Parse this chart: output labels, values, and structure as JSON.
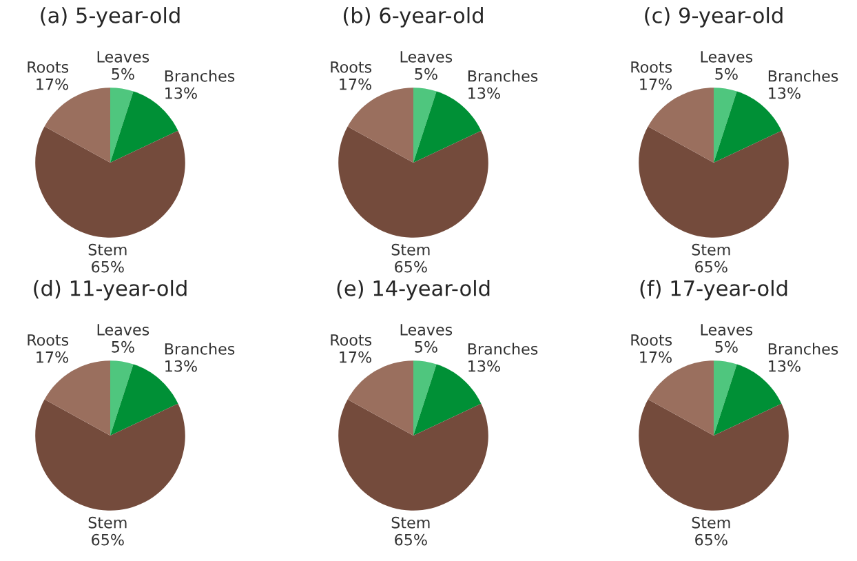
{
  "chart_data": [
    {
      "type": "pie",
      "title": "(a) 5-year-old",
      "categories": [
        "Leaves",
        "Branches",
        "Stem",
        "Roots"
      ],
      "values": [
        5,
        13,
        65,
        17
      ],
      "value_labels": [
        "5%",
        "13%",
        "65%",
        "17%"
      ],
      "colors": [
        "#4fc67e",
        "#009036",
        "#744b3c",
        "#9a6f5e"
      ]
    },
    {
      "type": "pie",
      "title": "(b) 6-year-old",
      "categories": [
        "Leaves",
        "Branches",
        "Stem",
        "Roots"
      ],
      "values": [
        5,
        13,
        65,
        17
      ],
      "value_labels": [
        "5%",
        "13%",
        "65%",
        "17%"
      ],
      "colors": [
        "#4fc67e",
        "#009036",
        "#744b3c",
        "#9a6f5e"
      ]
    },
    {
      "type": "pie",
      "title": "(c) 9-year-old",
      "categories": [
        "Leaves",
        "Branches",
        "Stem",
        "Roots"
      ],
      "values": [
        5,
        13,
        65,
        17
      ],
      "value_labels": [
        "5%",
        "13%",
        "65%",
        "17%"
      ],
      "colors": [
        "#4fc67e",
        "#009036",
        "#744b3c",
        "#9a6f5e"
      ]
    },
    {
      "type": "pie",
      "title": "(d) 11-year-old",
      "categories": [
        "Leaves",
        "Branches",
        "Stem",
        "Roots"
      ],
      "values": [
        5,
        13,
        65,
        17
      ],
      "value_labels": [
        "5%",
        "13%",
        "65%",
        "17%"
      ],
      "colors": [
        "#4fc67e",
        "#009036",
        "#744b3c",
        "#9a6f5e"
      ]
    },
    {
      "type": "pie",
      "title": "(e) 14-year-old",
      "categories": [
        "Leaves",
        "Branches",
        "Stem",
        "Roots"
      ],
      "values": [
        5,
        13,
        65,
        17
      ],
      "value_labels": [
        "5%",
        "13%",
        "65%",
        "17%"
      ],
      "colors": [
        "#4fc67e",
        "#009036",
        "#744b3c",
        "#9a6f5e"
      ]
    },
    {
      "type": "pie",
      "title": "(f) 17-year-old",
      "categories": [
        "Leaves",
        "Branches",
        "Stem",
        "Roots"
      ],
      "values": [
        5,
        13,
        65,
        17
      ],
      "value_labels": [
        "5%",
        "13%",
        "65%",
        "17%"
      ],
      "colors": [
        "#4fc67e",
        "#009036",
        "#744b3c",
        "#9a6f5e"
      ]
    }
  ]
}
